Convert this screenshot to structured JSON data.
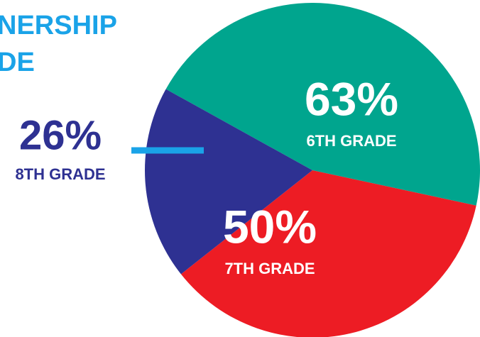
{
  "chart_data": {
    "type": "pie",
    "title_lines": [
      "NERSHIP",
      "DE"
    ],
    "categories": [
      "6TH GRADE",
      "7TH GRADE",
      "8TH GRADE"
    ],
    "values": [
      63,
      50,
      26
    ],
    "value_labels": [
      "63%",
      "50%",
      "26%"
    ],
    "colors": [
      "#00a58e",
      "#ed1c24",
      "#2e3192"
    ]
  }
}
